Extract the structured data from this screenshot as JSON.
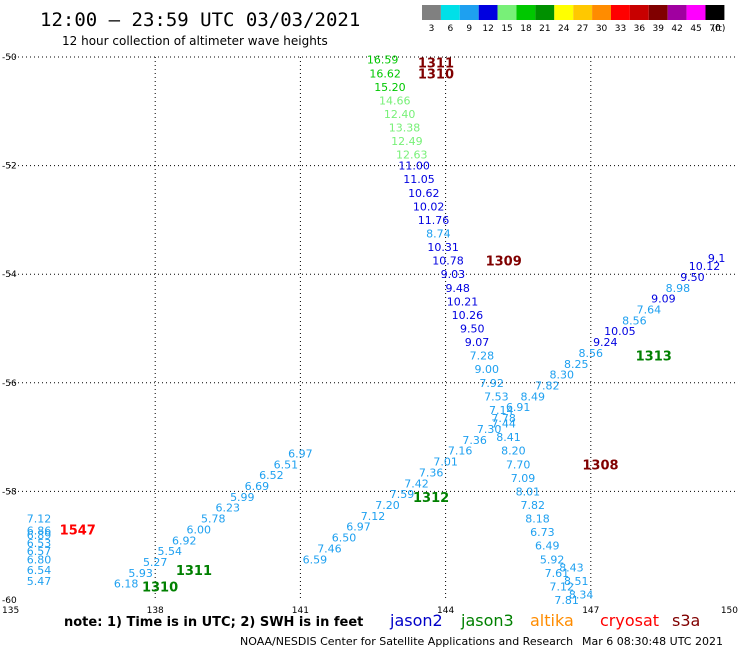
{
  "header": {
    "title": "12:00 — 23:59 UTC 03/03/2021",
    "subtitle": "12 hour collection of altimeter wave heights"
  },
  "legend": {
    "unit": "(ft)",
    "bins": [
      {
        "label": "3",
        "color": "#808080"
      },
      {
        "label": "6",
        "color": "#00e0e8"
      },
      {
        "label": "9",
        "color": "#1ea0f0"
      },
      {
        "label": "12",
        "color": "#0000e0"
      },
      {
        "label": "15",
        "color": "#78f078"
      },
      {
        "label": "18",
        "color": "#00c800"
      },
      {
        "label": "21",
        "color": "#009000"
      },
      {
        "label": "24",
        "color": "#ffff00"
      },
      {
        "label": "27",
        "color": "#ffc800"
      },
      {
        "label": "30",
        "color": "#ff8c00"
      },
      {
        "label": "33",
        "color": "#ff0000"
      },
      {
        "label": "36",
        "color": "#c80000"
      },
      {
        "label": "39",
        "color": "#800000"
      },
      {
        "label": "42",
        "color": "#a000a0"
      },
      {
        "label": "45",
        "color": "#ff00ff"
      },
      {
        "label": "70",
        "color": "#000000"
      }
    ]
  },
  "footer": {
    "note": "note: 1) Time is in UTC; 2) SWH is in feet",
    "credit": "NOAA/NESDIS Center for Satellite Applications and Research",
    "timestamp": "Mar  6 08:30:48 UTC 2021",
    "satellites": [
      {
        "name": "jason2",
        "color": "#0000c8"
      },
      {
        "name": "jason3",
        "color": "#008000"
      },
      {
        "name": "altika",
        "color": "#ff8c00"
      },
      {
        "name": "cryosat",
        "color": "#ff0000"
      },
      {
        "name": "s3a",
        "color": "#800000"
      }
    ]
  },
  "chart_data": {
    "type": "scatter",
    "title": "12:00 — 23:59 UTC 03/03/2021",
    "subtitle": "12 hour collection of altimeter wave heights",
    "xlim": [
      135,
      150
    ],
    "ylim": [
      -60,
      -50
    ],
    "x_ticks": [
      "135",
      "138",
      "141",
      "144",
      "147",
      "150"
    ],
    "y_ticks": [
      "-50",
      "-52",
      "-54",
      "-56",
      "-58",
      "-60"
    ],
    "grid": true,
    "unit": "ft",
    "series": [
      {
        "name": "1311",
        "label_color": "#800000",
        "points": [
          {
            "x": 142.7,
            "y": -50.05,
            "v": "16.59",
            "c": "#00c800"
          },
          {
            "x": 142.75,
            "y": -50.3,
            "v": "16.62",
            "c": "#00c800"
          },
          {
            "x": 142.85,
            "y": -50.55,
            "v": "15.20",
            "c": "#00c800"
          },
          {
            "x": 142.95,
            "y": -50.8,
            "v": "14.66",
            "c": "#78f078"
          },
          {
            "x": 143.05,
            "y": -51.05,
            "v": "12.40",
            "c": "#78f078"
          },
          {
            "x": 143.15,
            "y": -51.3,
            "v": "13.38",
            "c": "#78f078"
          },
          {
            "x": 143.2,
            "y": -51.55,
            "v": "12.49",
            "c": "#78f078"
          },
          {
            "x": 143.3,
            "y": -51.8,
            "v": "12.63",
            "c": "#78f078"
          }
        ],
        "label_pos": {
          "x": 143.8,
          "y": -50.1
        }
      },
      {
        "name": "1310",
        "label_color": "#800000",
        "points": [
          {
            "x": 143.35,
            "y": -52.0,
            "v": "11.00",
            "c": "#0000e0"
          },
          {
            "x": 143.45,
            "y": -52.25,
            "v": "11.05",
            "c": "#0000e0"
          },
          {
            "x": 143.55,
            "y": -52.5,
            "v": "10.62",
            "c": "#0000e0"
          },
          {
            "x": 143.65,
            "y": -52.75,
            "v": "10.02",
            "c": "#0000e0"
          },
          {
            "x": 143.75,
            "y": -53.0,
            "v": "11.76",
            "c": "#0000e0"
          },
          {
            "x": 143.85,
            "y": -53.25,
            "v": "8.74",
            "c": "#1ea0f0"
          },
          {
            "x": 143.95,
            "y": -53.5,
            "v": "10.31",
            "c": "#0000e0"
          },
          {
            "x": 144.05,
            "y": -53.75,
            "v": "10.78",
            "c": "#0000e0"
          },
          {
            "x": 144.15,
            "y": -54.0,
            "v": "9.03",
            "c": "#0000e0"
          },
          {
            "x": 144.25,
            "y": -54.25,
            "v": "9.48",
            "c": "#0000e0"
          },
          {
            "x": 144.35,
            "y": -54.5,
            "v": "10.21",
            "c": "#0000e0"
          },
          {
            "x": 144.45,
            "y": -54.75,
            "v": "10.26",
            "c": "#0000e0"
          },
          {
            "x": 144.55,
            "y": -55.0,
            "v": "9.50",
            "c": "#0000e0"
          },
          {
            "x": 144.65,
            "y": -55.25,
            "v": "9.07",
            "c": "#0000e0"
          },
          {
            "x": 144.75,
            "y": -55.5,
            "v": "7.28",
            "c": "#1ea0f0"
          },
          {
            "x": 144.85,
            "y": -55.75,
            "v": "9.00",
            "c": "#1ea0f0"
          },
          {
            "x": 144.95,
            "y": -56.0,
            "v": "7.92",
            "c": "#1ea0f0"
          },
          {
            "x": 145.05,
            "y": -56.25,
            "v": "7.53",
            "c": "#1ea0f0"
          }
        ],
        "label_pos": {
          "x": 143.8,
          "y": -50.3
        }
      },
      {
        "name": "1309",
        "label_color": "#800000",
        "points": [
          {
            "x": 145.15,
            "y": -56.5,
            "v": "7.14",
            "c": "#1ea0f0"
          },
          {
            "x": 145.2,
            "y": -56.75,
            "v": "7.44",
            "c": "#1ea0f0"
          },
          {
            "x": 145.3,
            "y": -57.0,
            "v": "8.41",
            "c": "#1ea0f0"
          },
          {
            "x": 145.4,
            "y": -57.25,
            "v": "8.20",
            "c": "#1ea0f0"
          },
          {
            "x": 145.5,
            "y": -57.5,
            "v": "7.70",
            "c": "#1ea0f0"
          },
          {
            "x": 145.6,
            "y": -57.75,
            "v": "7.09",
            "c": "#1ea0f0"
          },
          {
            "x": 145.7,
            "y": -58.0,
            "v": "8.01",
            "c": "#1ea0f0"
          },
          {
            "x": 145.8,
            "y": -58.25,
            "v": "7.82",
            "c": "#1ea0f0"
          },
          {
            "x": 145.9,
            "y": -58.5,
            "v": "8.18",
            "c": "#1ea0f0"
          },
          {
            "x": 146.0,
            "y": -58.75,
            "v": "6.73",
            "c": "#1ea0f0"
          },
          {
            "x": 146.1,
            "y": -59.0,
            "v": "6.49",
            "c": "#1ea0f0"
          },
          {
            "x": 146.2,
            "y": -59.25,
            "v": "5.92",
            "c": "#1ea0f0"
          },
          {
            "x": 146.3,
            "y": -59.5,
            "v": "7.61",
            "c": "#1ea0f0"
          },
          {
            "x": 146.4,
            "y": -59.75,
            "v": "7.12",
            "c": "#1ea0f0"
          },
          {
            "x": 146.5,
            "y": -60.0,
            "v": "7.81",
            "c": "#1ea0f0"
          }
        ],
        "label_pos": {
          "x": 145.2,
          "y": -53.75
        }
      },
      {
        "name": "1308",
        "label_color": "#800000",
        "points": [
          {
            "x": 146.6,
            "y": -59.4,
            "v": "8.43",
            "c": "#1ea0f0"
          },
          {
            "x": 146.7,
            "y": -59.65,
            "v": "8.51",
            "c": "#1ea0f0"
          },
          {
            "x": 146.8,
            "y": -59.9,
            "v": "8.34",
            "c": "#1ea0f0"
          }
        ],
        "label_pos": {
          "x": 147.2,
          "y": -57.5
        }
      },
      {
        "name": "1313",
        "label_color": "#008000",
        "points": [
          {
            "x": 149.6,
            "y": -53.7,
            "v": "9.1",
            "c": "#0000e0"
          },
          {
            "x": 149.35,
            "y": -53.85,
            "v": "10.12",
            "c": "#0000e0"
          },
          {
            "x": 149.1,
            "y": -54.05,
            "v": "9.50",
            "c": "#0000e0"
          },
          {
            "x": 148.8,
            "y": -54.25,
            "v": "8.98",
            "c": "#1ea0f0"
          },
          {
            "x": 148.5,
            "y": -54.45,
            "v": "9.09",
            "c": "#0000e0"
          },
          {
            "x": 148.2,
            "y": -54.65,
            "v": "7.64",
            "c": "#1ea0f0"
          },
          {
            "x": 147.9,
            "y": -54.85,
            "v": "8.56",
            "c": "#1ea0f0"
          },
          {
            "x": 147.6,
            "y": -55.05,
            "v": "10.05",
            "c": "#0000e0"
          },
          {
            "x": 147.3,
            "y": -55.25,
            "v": "9.24",
            "c": "#0000e0"
          },
          {
            "x": 147.0,
            "y": -55.45,
            "v": "8.56",
            "c": "#1ea0f0"
          },
          {
            "x": 146.7,
            "y": -55.65,
            "v": "8.25",
            "c": "#1ea0f0"
          },
          {
            "x": 146.4,
            "y": -55.85,
            "v": "8.30",
            "c": "#1ea0f0"
          },
          {
            "x": 146.1,
            "y": -56.05,
            "v": "7.82",
            "c": "#1ea0f0"
          },
          {
            "x": 145.8,
            "y": -56.25,
            "v": "8.49",
            "c": "#1ea0f0"
          },
          {
            "x": 145.5,
            "y": -56.45,
            "v": "6.91",
            "c": "#1ea0f0"
          },
          {
            "x": 145.2,
            "y": -56.65,
            "v": "7.78",
            "c": "#1ea0f0"
          }
        ],
        "label_pos": {
          "x": 148.3,
          "y": -55.5
        }
      },
      {
        "name": "1312",
        "label_color": "#008000",
        "points": [
          {
            "x": 144.9,
            "y": -56.85,
            "v": "7.30",
            "c": "#1ea0f0"
          },
          {
            "x": 144.6,
            "y": -57.05,
            "v": "7.36",
            "c": "#1ea0f0"
          },
          {
            "x": 144.3,
            "y": -57.25,
            "v": "7.16",
            "c": "#1ea0f0"
          },
          {
            "x": 144.0,
            "y": -57.45,
            "v": "7.01",
            "c": "#1ea0f0"
          },
          {
            "x": 143.7,
            "y": -57.65,
            "v": "7.36",
            "c": "#1ea0f0"
          },
          {
            "x": 143.4,
            "y": -57.85,
            "v": "7.42",
            "c": "#1ea0f0"
          },
          {
            "x": 143.1,
            "y": -58.05,
            "v": "7.59",
            "c": "#1ea0f0"
          },
          {
            "x": 142.8,
            "y": -58.25,
            "v": "7.20",
            "c": "#1ea0f0"
          },
          {
            "x": 142.5,
            "y": -58.45,
            "v": "7.12",
            "c": "#1ea0f0"
          },
          {
            "x": 142.2,
            "y": -58.65,
            "v": "6.97",
            "c": "#1ea0f0"
          },
          {
            "x": 141.9,
            "y": -58.85,
            "v": "6.50",
            "c": "#1ea0f0"
          },
          {
            "x": 141.6,
            "y": -59.05,
            "v": "7.46",
            "c": "#1ea0f0"
          },
          {
            "x": 141.3,
            "y": -59.25,
            "v": "6.59",
            "c": "#1ea0f0"
          }
        ],
        "label_pos": {
          "x": 143.7,
          "y": -58.1
        }
      },
      {
        "name": "1311",
        "label_color": "#008000",
        "points": [
          {
            "x": 141.0,
            "y": -57.3,
            "v": "6.97",
            "c": "#1ea0f0"
          },
          {
            "x": 140.7,
            "y": -57.5,
            "v": "6.51",
            "c": "#1ea0f0"
          },
          {
            "x": 140.4,
            "y": -57.7,
            "v": "6.52",
            "c": "#1ea0f0"
          },
          {
            "x": 140.1,
            "y": -57.9,
            "v": "6.69",
            "c": "#1ea0f0"
          },
          {
            "x": 139.8,
            "y": -58.1,
            "v": "5.99",
            "c": "#1ea0f0"
          },
          {
            "x": 139.5,
            "y": -58.3,
            "v": "6.23",
            "c": "#1ea0f0"
          },
          {
            "x": 139.2,
            "y": -58.5,
            "v": "5.78",
            "c": "#1ea0f0"
          },
          {
            "x": 138.9,
            "y": -58.7,
            "v": "6.00",
            "c": "#1ea0f0"
          },
          {
            "x": 138.6,
            "y": -58.9,
            "v": "6.92",
            "c": "#1ea0f0"
          }
        ],
        "label_pos": {
          "x": 138.8,
          "y": -59.45
        }
      },
      {
        "name": "1310",
        "label_color": "#008000",
        "points": [
          {
            "x": 138.3,
            "y": -59.1,
            "v": "5.54",
            "c": "#1ea0f0"
          },
          {
            "x": 138.0,
            "y": -59.3,
            "v": "5.27",
            "c": "#1ea0f0"
          },
          {
            "x": 137.7,
            "y": -59.5,
            "v": "5.93",
            "c": "#1ea0f0"
          },
          {
            "x": 137.4,
            "y": -59.7,
            "v": "6.18",
            "c": "#1ea0f0"
          }
        ],
        "label_pos": {
          "x": 138.1,
          "y": -59.75
        }
      },
      {
        "name": "1547",
        "label_color": "#ff0000",
        "points": [
          {
            "x": 135.6,
            "y": -58.5,
            "v": "7.12",
            "c": "#1ea0f0"
          },
          {
            "x": 135.6,
            "y": -58.72,
            "v": "6.86",
            "c": "#1ea0f0"
          },
          {
            "x": 135.6,
            "y": -58.8,
            "v": "6.89",
            "c": "#1ea0f0"
          },
          {
            "x": 135.6,
            "y": -58.95,
            "v": "6.53",
            "c": "#1ea0f0"
          },
          {
            "x": 135.6,
            "y": -59.1,
            "v": "6.57",
            "c": "#1ea0f0"
          },
          {
            "x": 135.6,
            "y": -59.25,
            "v": "6.80",
            "c": "#1ea0f0"
          },
          {
            "x": 135.6,
            "y": -59.45,
            "v": "6.54",
            "c": "#1ea0f0"
          },
          {
            "x": 135.6,
            "y": -59.65,
            "v": "5.47",
            "c": "#1ea0f0"
          }
        ],
        "label_pos": {
          "x": 136.4,
          "y": -58.7
        }
      }
    ]
  }
}
